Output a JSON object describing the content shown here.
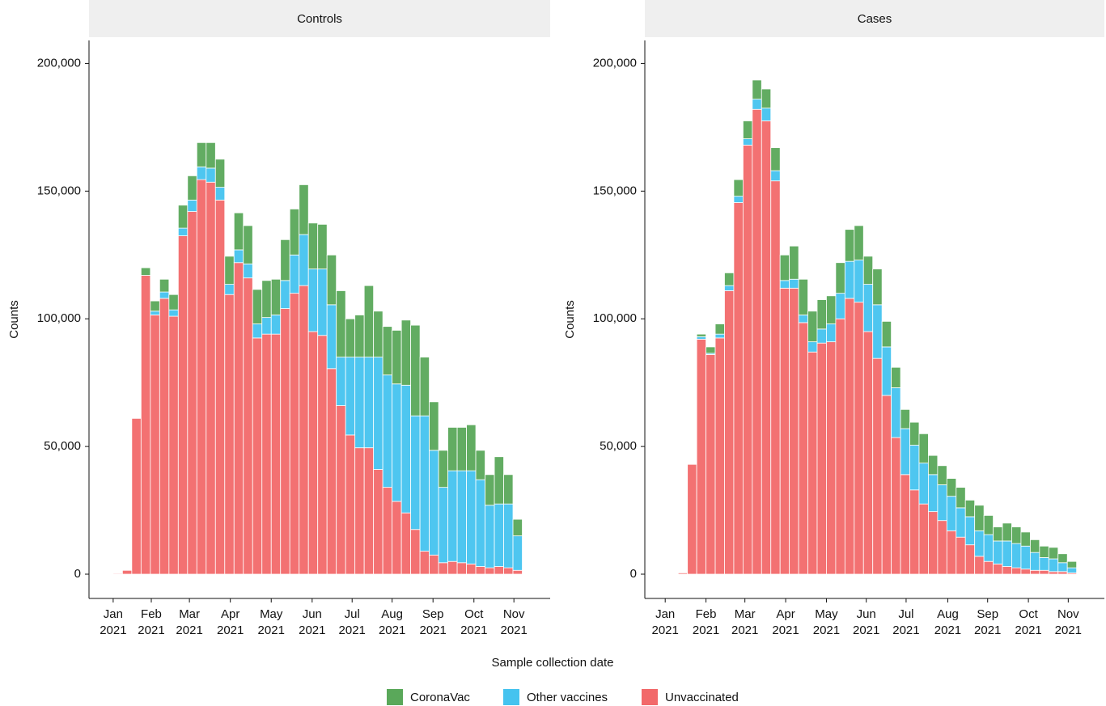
{
  "chart_data": [
    {
      "type": "bar",
      "stacked": true,
      "title": "Controls",
      "ylabel": "Counts",
      "xlabel": "Sample collection date",
      "categories": [
        null,
        null,
        null,
        null,
        null,
        null,
        null,
        null,
        null,
        null,
        null,
        null,
        null,
        null,
        null,
        null,
        null,
        null,
        null,
        null,
        null,
        null,
        null,
        null,
        null,
        null,
        null,
        null,
        null,
        null,
        null,
        null,
        null,
        null,
        null,
        null,
        null,
        null,
        null,
        null,
        null,
        null,
        null,
        null
      ],
      "xlim": [
        -2.6,
        47.0
      ],
      "xticks": [
        {
          "value": 0,
          "label": "Jan\n2021"
        },
        {
          "value": 4.1,
          "label": "Feb\n2021"
        },
        {
          "value": 8.2,
          "label": "Mar\n2021"
        },
        {
          "value": 12.6,
          "label": "Apr\n2021"
        },
        {
          "value": 17.0,
          "label": "May\n2021"
        },
        {
          "value": 21.4,
          "label": "Jun\n2021"
        },
        {
          "value": 25.7,
          "label": "Jul\n2021"
        },
        {
          "value": 30.0,
          "label": "Aug\n2021"
        },
        {
          "value": 34.4,
          "label": "Sep\n2021"
        },
        {
          "value": 38.8,
          "label": "Oct\n2021"
        },
        {
          "value": 43.1,
          "label": "Nov\n2021"
        }
      ],
      "ylim": [
        -9500,
        209000
      ],
      "yticks": [
        0,
        {
          "value": 50000,
          "label": "50,000"
        },
        {
          "value": 100000,
          "label": "100,000"
        },
        {
          "value": 150000,
          "label": "150,000"
        },
        {
          "value": 200000,
          "label": "200,000"
        }
      ],
      "series": [
        {
          "name": "CoronaVac",
          "color": "#5aa85a",
          "values": [
            0,
            0,
            0,
            3000,
            4000,
            5000,
            6000,
            9000,
            9500,
            9500,
            10000,
            11000,
            11000,
            14500,
            15000,
            13500,
            14500,
            14000,
            16000,
            18000,
            19500,
            18000,
            17500,
            19500,
            26000,
            15000,
            16500,
            28000,
            18000,
            19000,
            21000,
            25500,
            35500,
            23000,
            19000,
            14500,
            17000,
            17000,
            18000,
            11500,
            12000,
            18500,
            11500,
            6500
          ]
        },
        {
          "name": "Other vaccines",
          "color": "#45c3ef",
          "values": [
            0,
            0,
            0,
            0,
            1500,
            2500,
            2500,
            3000,
            4500,
            5000,
            5500,
            5000,
            4000,
            5000,
            5500,
            5500,
            6500,
            7500,
            11000,
            15000,
            20000,
            24500,
            26000,
            25000,
            19000,
            30500,
            35500,
            35500,
            44000,
            44000,
            46000,
            50000,
            44500,
            53000,
            41000,
            29500,
            35500,
            36000,
            36500,
            34000,
            24500,
            24500,
            25000,
            13500
          ]
        },
        {
          "name": "Unvaccinated",
          "color": "#f2696a",
          "values": [
            300,
            1500,
            61000,
            117000,
            101500,
            108000,
            101000,
            132500,
            142000,
            154500,
            153500,
            146500,
            109500,
            122000,
            116000,
            92500,
            94000,
            94000,
            104000,
            110000,
            113000,
            95000,
            93500,
            80500,
            66000,
            54500,
            49500,
            49500,
            41000,
            34000,
            28500,
            24000,
            17500,
            9000,
            7500,
            4500,
            5000,
            4500,
            4000,
            3000,
            2500,
            3000,
            2500,
            1500
          ]
        }
      ]
    },
    {
      "type": "bar",
      "stacked": true,
      "title": "Cases",
      "ylabel": "Counts",
      "categories": [
        null,
        null,
        null,
        null,
        null,
        null,
        null,
        null,
        null,
        null,
        null,
        null,
        null,
        null,
        null,
        null,
        null,
        null,
        null,
        null,
        null,
        null,
        null,
        null,
        null,
        null,
        null,
        null,
        null,
        null,
        null,
        null,
        null,
        null,
        null,
        null,
        null,
        null,
        null,
        null,
        null,
        null,
        null
      ],
      "xlim": [
        -3.6,
        46.0
      ],
      "xticks": [
        {
          "value": -1.4,
          "label": "Jan\n2021"
        },
        {
          "value": 3.0,
          "label": "Feb\n2021"
        },
        {
          "value": 7.2,
          "label": "Mar\n2021"
        },
        {
          "value": 11.6,
          "label": "Apr\n2021"
        },
        {
          "value": 16.0,
          "label": "May\n2021"
        },
        {
          "value": 20.3,
          "label": "Jun\n2021"
        },
        {
          "value": 24.6,
          "label": "Jul\n2021"
        },
        {
          "value": 29.1,
          "label": "Aug\n2021"
        },
        {
          "value": 33.4,
          "label": "Sep\n2021"
        },
        {
          "value": 37.8,
          "label": "Oct\n2021"
        },
        {
          "value": 42.1,
          "label": "Nov\n2021"
        }
      ],
      "ylim": [
        -9500,
        209000
      ],
      "yticks": [
        0,
        {
          "value": 50000,
          "label": "50,000"
        },
        {
          "value": 100000,
          "label": "100,000"
        },
        {
          "value": 150000,
          "label": "150,000"
        },
        {
          "value": 200000,
          "label": "200,000"
        }
      ],
      "series": [
        {
          "name": "CoronaVac",
          "color": "#5aa85a",
          "values": [
            0,
            0,
            1000,
            2500,
            4000,
            5000,
            6500,
            7000,
            7500,
            7500,
            9000,
            10000,
            13000,
            14000,
            12000,
            11500,
            11000,
            12000,
            12500,
            13500,
            11000,
            14000,
            10000,
            8000,
            7500,
            9000,
            11500,
            7500,
            7500,
            7000,
            8000,
            6500,
            10000,
            7500,
            5500,
            7000,
            6500,
            5500,
            5000,
            4500,
            4500,
            3500,
            2500
          ]
        },
        {
          "name": "Other vaccines",
          "color": "#45c3ef",
          "values": [
            0,
            0,
            1000,
            500,
            1500,
            2000,
            2500,
            2500,
            4000,
            5000,
            4000,
            3000,
            3500,
            3000,
            4000,
            5500,
            7000,
            10000,
            14500,
            16500,
            18500,
            21000,
            19000,
            19500,
            18000,
            17500,
            16000,
            14500,
            14000,
            13500,
            11500,
            11000,
            10000,
            10500,
            9000,
            10000,
            9500,
            9000,
            7000,
            5000,
            5000,
            3500,
            2000
          ]
        },
        {
          "name": "Unvaccinated",
          "color": "#f2696a",
          "values": [
            500,
            43000,
            92000,
            86000,
            92500,
            111000,
            145500,
            168000,
            182000,
            177500,
            154000,
            112000,
            112000,
            98500,
            87000,
            90500,
            91000,
            100000,
            108000,
            106500,
            95000,
            84500,
            70000,
            53500,
            39000,
            33000,
            27500,
            24500,
            21000,
            17000,
            14500,
            11500,
            7000,
            5000,
            4000,
            3000,
            2500,
            2000,
            1500,
            1500,
            1000,
            1000,
            500
          ]
        }
      ]
    }
  ]
}
